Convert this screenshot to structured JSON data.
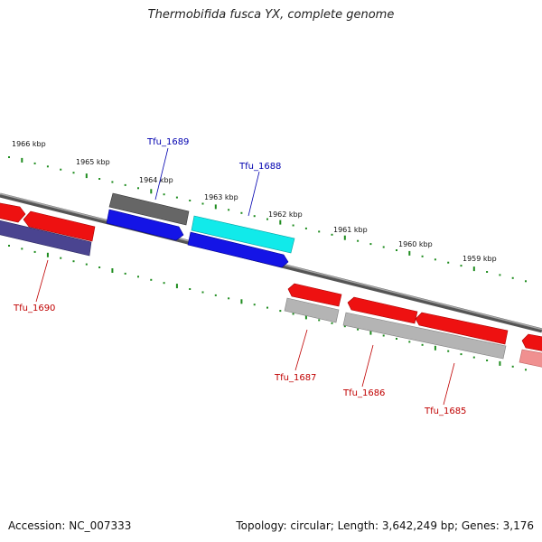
{
  "title": "Thermobifida fusca YX, complete genome",
  "footer": {
    "accession": "Accession: NC_007333",
    "summary": "Topology: circular; Length: 3,642,249 bp; Genes: 3,176"
  },
  "colors": {
    "backbone": "#7d7d7d",
    "ticks": "#1e8c1e",
    "label_plus": "#0000b0",
    "label_minus": "#c00000"
  },
  "tick_labels": [
    "1966 kbp",
    "1965 kbp",
    "1964 kbp",
    "1963 kbp",
    "1962 kbp",
    "1961 kbp",
    "1960 kbp",
    "1959 kbp"
  ],
  "genes": [
    {
      "label": "",
      "strand": "minus",
      "ring": "outer",
      "color": "#ee1111"
    },
    {
      "label": "",
      "strand": "minus",
      "ring": "outer",
      "color": "#ee1111"
    },
    {
      "label": "Tfu_1690",
      "strand": "minus",
      "ring": "outer",
      "color": "#4a4490"
    },
    {
      "label": "",
      "strand": "plus",
      "ring": "outer",
      "color": "#666666"
    },
    {
      "label": "Tfu_1689",
      "strand": "plus",
      "ring": "inner",
      "color": "#1414e6"
    },
    {
      "label": "",
      "strand": "plus",
      "ring": "outer",
      "color": "#11eaea"
    },
    {
      "label": "Tfu_1688",
      "strand": "plus",
      "ring": "inner",
      "color": "#1414e6"
    },
    {
      "label": "",
      "strand": "minus",
      "ring": "outer",
      "color": "#ee1111"
    },
    {
      "label": "Tfu_1687",
      "strand": "minus",
      "ring": "inner",
      "color": "#b4b4b4"
    },
    {
      "label": "",
      "strand": "minus",
      "ring": "outer",
      "color": "#ee1111"
    },
    {
      "label": "Tfu_1686",
      "strand": "minus",
      "ring": "inner",
      "color": "#b4b4b4"
    },
    {
      "label": "",
      "strand": "minus",
      "ring": "outer",
      "color": "#ee1111"
    },
    {
      "label": "Tfu_1685",
      "strand": "minus",
      "ring": "inner",
      "color": "#b4b4b4"
    },
    {
      "label": "",
      "strand": "minus",
      "ring": "outer",
      "color": "#ee1111"
    },
    {
      "label": "",
      "strand": "minus",
      "ring": "inner",
      "color": "#f09090"
    }
  ]
}
